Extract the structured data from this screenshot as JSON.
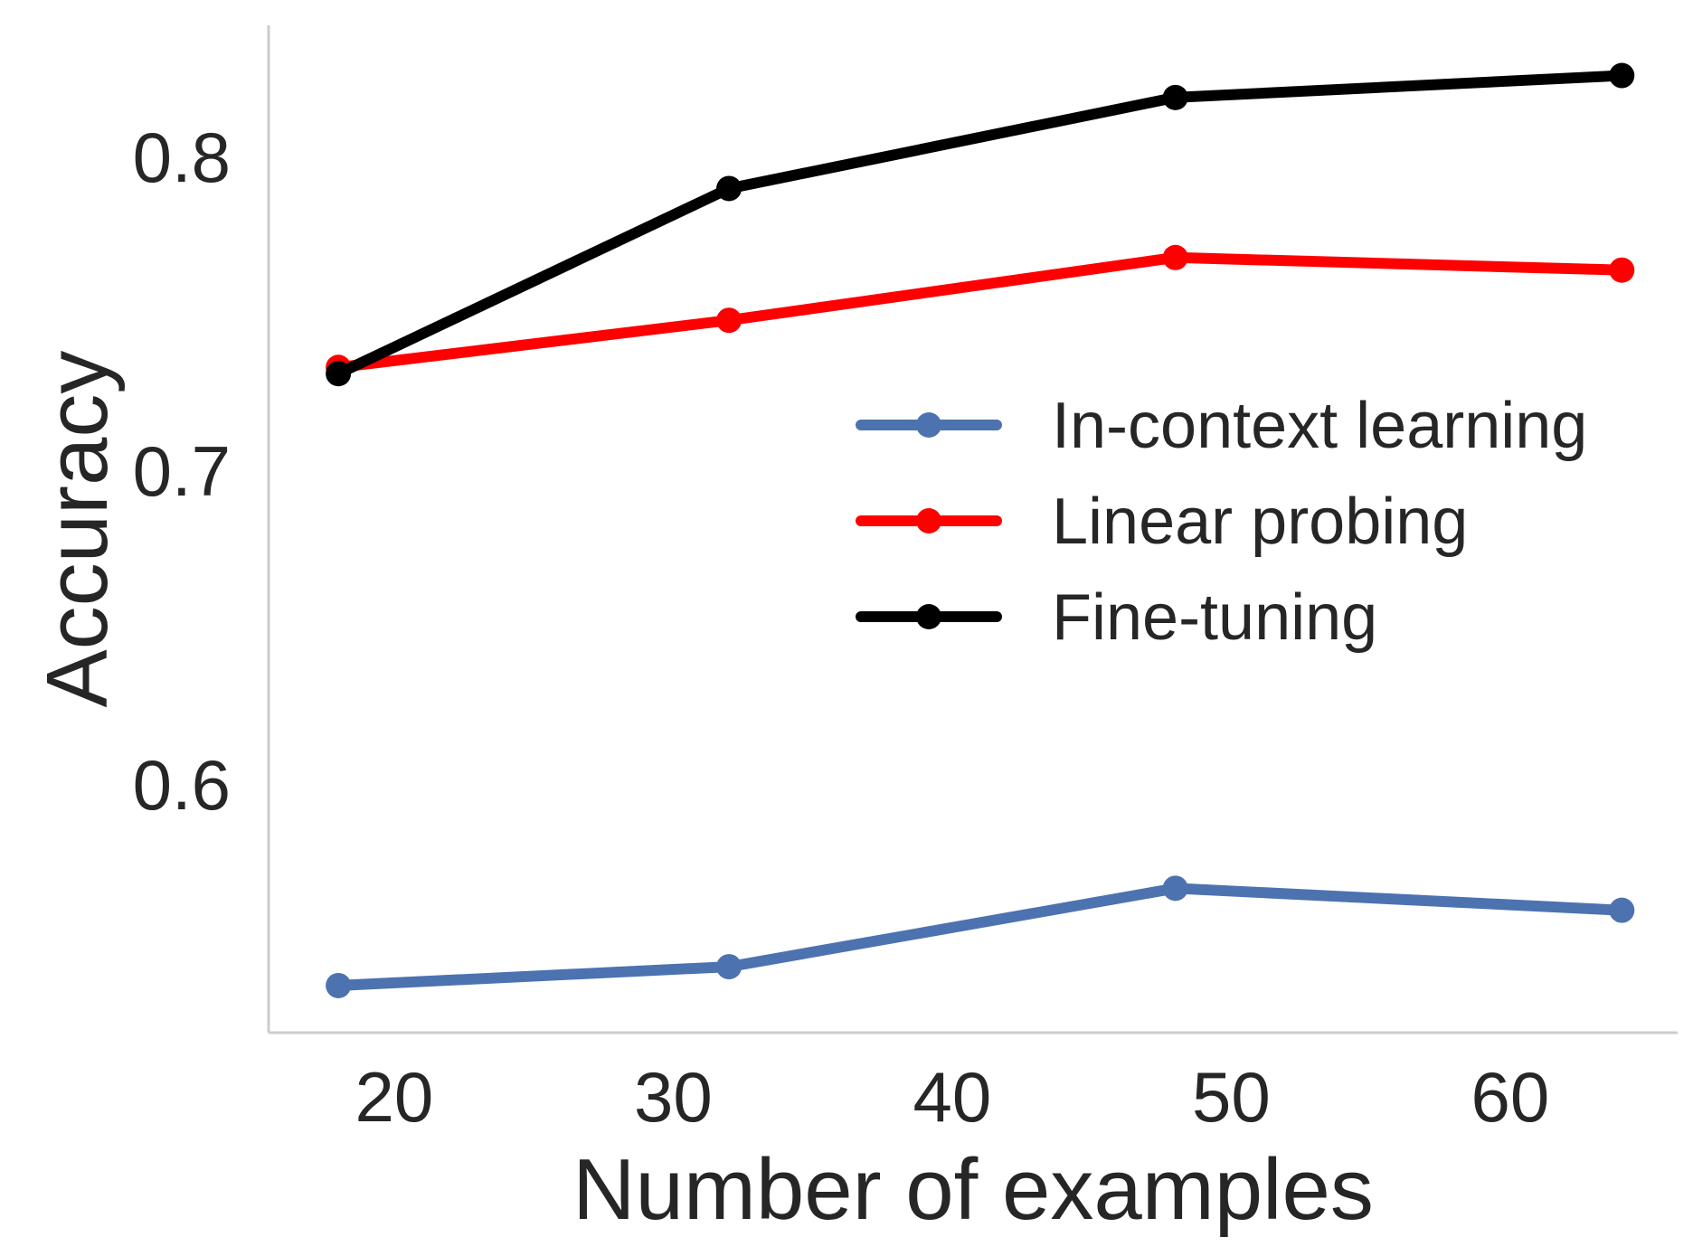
{
  "chart_data": {
    "type": "line",
    "xlabel": "Number of examples",
    "ylabel": "Accuracy",
    "x": [
      18,
      32,
      48,
      64
    ],
    "xlim": [
      15.5,
      66
    ],
    "ylim": [
      0.521,
      0.842
    ],
    "xticks": [
      20,
      30,
      40,
      50,
      60
    ],
    "xtick_labels": [
      "20",
      "30",
      "40",
      "50",
      "60"
    ],
    "yticks": [
      0.6,
      0.7,
      0.8
    ],
    "ytick_labels": [
      "0.6",
      "0.7",
      "0.8"
    ],
    "grid": false,
    "legend_position": "center-right",
    "series": [
      {
        "name": "In-context learning",
        "color": "#4c72b0",
        "values": [
          0.536,
          0.542,
          0.567,
          0.56
        ]
      },
      {
        "name": "Linear probing",
        "color": "#ff0000",
        "values": [
          0.733,
          0.748,
          0.768,
          0.764
        ]
      },
      {
        "name": "Fine-tuning",
        "color": "#000000",
        "values": [
          0.731,
          0.79,
          0.819,
          0.826
        ]
      }
    ]
  }
}
